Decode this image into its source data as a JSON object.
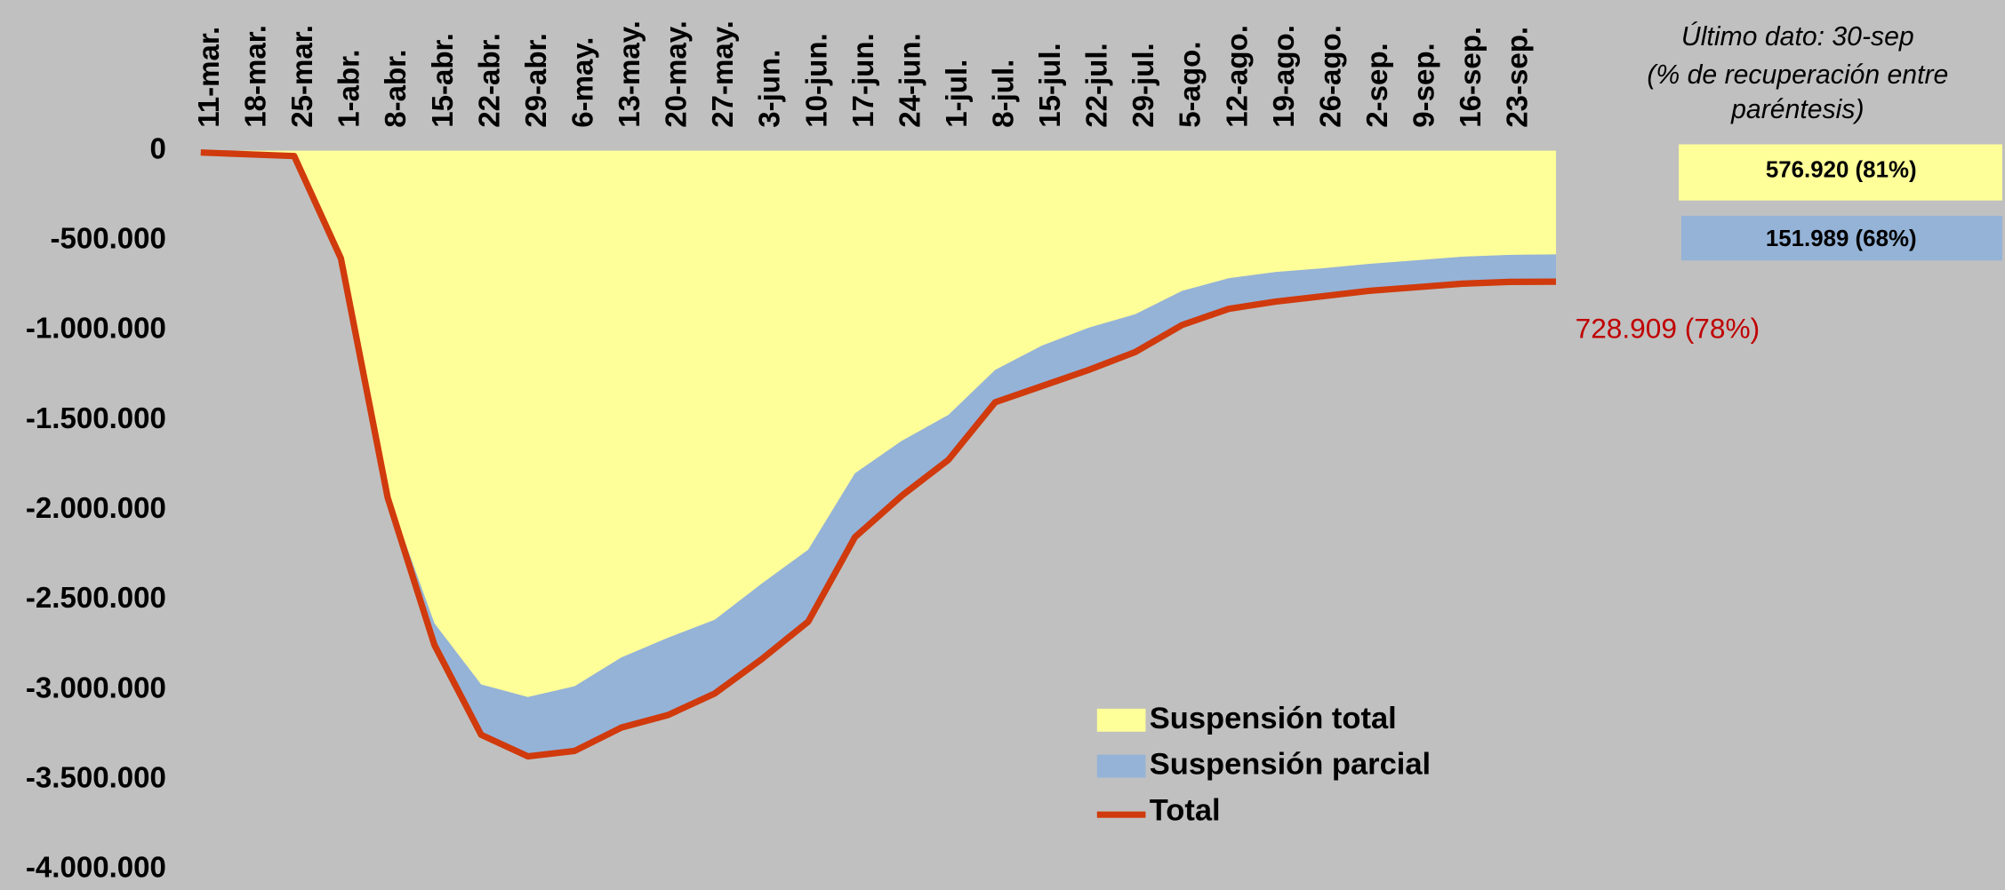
{
  "chart_data": {
    "type": "area",
    "categories": [
      "11-mar.",
      "18-mar.",
      "25-mar.",
      "1-abr.",
      "8-abr.",
      "15-abr.",
      "22-abr.",
      "29-abr.",
      "6-may.",
      "13-may.",
      "20-may.",
      "27-may.",
      "3-jun.",
      "10-jun.",
      "17-jun.",
      "24-jun.",
      "1-jul.",
      "8-jul.",
      "15-jul.",
      "22-jul.",
      "29-jul.",
      "5-ago.",
      "12-ago.",
      "19-ago.",
      "26-ago.",
      "2-sep.",
      "9-sep.",
      "16-sep.",
      "23-sep.",
      null
    ],
    "series": [
      {
        "name": "Suspensión total",
        "color": "#ffff99",
        "values": [
          -10000,
          -20000,
          -30000,
          -600000,
          -1910000,
          -2630000,
          -2970000,
          -3040000,
          -2980000,
          -2820000,
          -2710000,
          -2610000,
          -2410000,
          -2220000,
          -1795000,
          -1615000,
          -1470000,
          -1220000,
          -1085000,
          -985000,
          -910000,
          -780000,
          -710000,
          -675000,
          -655000,
          -630000,
          -610000,
          -590000,
          -580000,
          -576920
        ]
      },
      {
        "name": "Suspensión parcial",
        "color": "#95b3d7",
        "values": [
          0,
          0,
          0,
          0,
          -20000,
          -120000,
          -280000,
          -330000,
          -360000,
          -390000,
          -430000,
          -410000,
          -420000,
          -400000,
          -355000,
          -305000,
          -250000,
          -180000,
          -225000,
          -235000,
          -210000,
          -190000,
          -170000,
          -165000,
          -155000,
          -150000,
          -150000,
          -150000,
          -150000,
          -151989
        ]
      },
      {
        "name": "Total",
        "color": "#d03a0c",
        "type": "line",
        "values": [
          -10000,
          -20000,
          -30000,
          -600000,
          -1930000,
          -2750000,
          -3250000,
          -3370000,
          -3340000,
          -3210000,
          -3140000,
          -3020000,
          -2830000,
          -2620000,
          -2150000,
          -1920000,
          -1720000,
          -1400000,
          -1310000,
          -1220000,
          -1120000,
          -970000,
          -880000,
          -840000,
          -810000,
          -780000,
          -760000,
          -740000,
          -730000,
          -728909
        ]
      }
    ],
    "ylim": [
      -4000000,
      0
    ],
    "yticks": [
      0,
      {
        "value": -500000,
        "label": "-500.000"
      },
      {
        "value": -1000000,
        "label": "-1.000.000"
      },
      {
        "value": -1500000,
        "label": "-1.500.000"
      },
      {
        "value": -2000000,
        "label": "-2.000.000"
      },
      {
        "value": -2500000,
        "label": "-2.500.000"
      },
      {
        "value": -3000000,
        "label": "-3.000.000"
      },
      {
        "value": -3500000,
        "label": "-3.500.000"
      },
      {
        "value": -4000000,
        "label": "-4.000.000"
      }
    ],
    "note": [
      "Último dato: 30-sep",
      "(% de recuperación entre",
      "paréntesis)"
    ],
    "annotations": [
      {
        "text": "576.920 (81%)",
        "color": "#ffff99"
      },
      {
        "text": "151.989 (68%)",
        "color": "#95b3d7"
      },
      {
        "text": "728.909 (78%)",
        "color": "#c00000"
      }
    ]
  }
}
